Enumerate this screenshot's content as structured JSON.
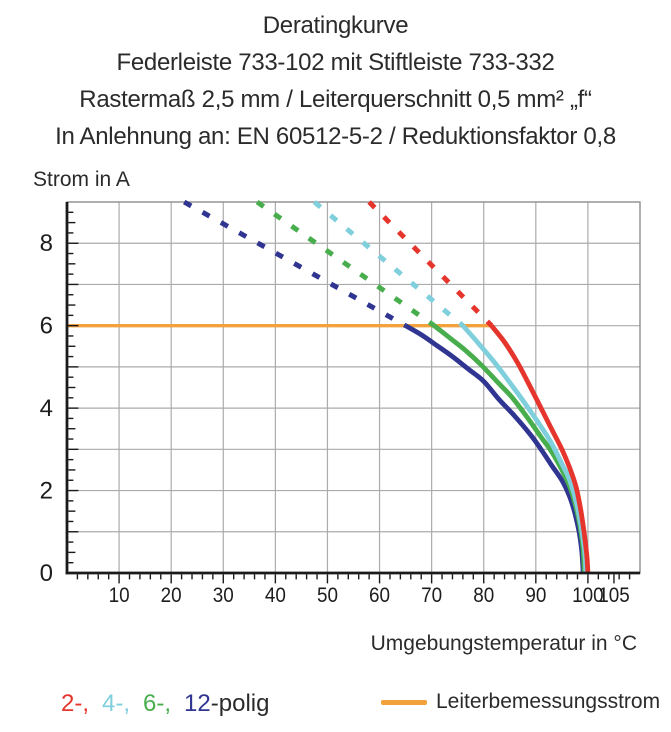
{
  "title": {
    "lines": [
      "Deratingkurve",
      "Federleiste 733-102 mit Stiftleiste 733-332",
      "Rastermaß 2,5 mm / Leiterquerschnitt 0,5 mm² „f“",
      "In Anlehnung an: EN 60512-5-2 / Reduktionsfaktor 0,8"
    ]
  },
  "chart_data": {
    "type": "line",
    "title": "Deratingkurve",
    "xlabel": "Umgebungstemperatur in °C",
    "ylabel": "Strom in A",
    "xlim": [
      0,
      110
    ],
    "ylim": [
      0,
      9
    ],
    "grid": "on",
    "grid_color": "#ababab",
    "frame_color": "#8d8d8d",
    "axis_color": "#1a1a1a",
    "x_tick_labels": [
      10,
      20,
      30,
      40,
      50,
      60,
      70,
      80,
      90,
      100,
      105
    ],
    "y_tick_labels": [
      0,
      2,
      4,
      6,
      8
    ],
    "x_minor_tick_step": 2,
    "y_minor_tick_step": 0.25,
    "reference_line": {
      "label": "Leiterbemessungsstrom",
      "current_a": 6,
      "x_start": 0,
      "x_end": 81.5,
      "color": "#f2a23c"
    },
    "series": [
      {
        "name": "2-polig",
        "color": "#e5352d",
        "dashed_points": [
          [
            58,
            9
          ],
          [
            81.5,
            6
          ]
        ],
        "solid_points": [
          [
            81.5,
            6
          ],
          [
            84,
            5.6
          ],
          [
            86.5,
            5.1
          ],
          [
            89,
            4.5
          ],
          [
            91,
            4.0
          ],
          [
            93,
            3.5
          ],
          [
            95,
            3.0
          ],
          [
            96.5,
            2.55
          ],
          [
            97.7,
            2.1
          ],
          [
            98.6,
            1.55
          ],
          [
            99.3,
            0.95
          ],
          [
            99.8,
            0.4
          ],
          [
            100,
            0
          ]
        ]
      },
      {
        "name": "4-polig",
        "color": "#7fcfdc",
        "dashed_points": [
          [
            47.5,
            9
          ],
          [
            76,
            6
          ]
        ],
        "solid_points": [
          [
            76,
            6
          ],
          [
            79,
            5.57
          ],
          [
            82,
            5.12
          ],
          [
            85,
            4.62
          ],
          [
            88,
            4.1
          ],
          [
            91,
            3.55
          ],
          [
            93,
            3.15
          ],
          [
            95,
            2.65
          ],
          [
            96.5,
            2.25
          ],
          [
            97.8,
            1.7
          ],
          [
            98.8,
            1.05
          ],
          [
            99.4,
            0.5
          ],
          [
            99.6,
            0
          ]
        ]
      },
      {
        "name": "6-polig",
        "color": "#48ae4d",
        "dashed_points": [
          [
            36.5,
            9
          ],
          [
            70.5,
            6
          ]
        ],
        "solid_points": [
          [
            70.5,
            6
          ],
          [
            73.5,
            5.7
          ],
          [
            76.5,
            5.4
          ],
          [
            79.5,
            5.05
          ],
          [
            82.5,
            4.65
          ],
          [
            85.5,
            4.25
          ],
          [
            88.5,
            3.75
          ],
          [
            91,
            3.3
          ],
          [
            93,
            2.95
          ],
          [
            95,
            2.5
          ],
          [
            96.5,
            2.1
          ],
          [
            97.7,
            1.6
          ],
          [
            98.6,
            1.05
          ],
          [
            99.1,
            0.55
          ],
          [
            99.3,
            0
          ]
        ]
      },
      {
        "name": "12-polig",
        "color": "#2f3590",
        "dashed_points": [
          [
            22.5,
            9
          ],
          [
            65,
            6
          ]
        ],
        "solid_points": [
          [
            65,
            6
          ],
          [
            68,
            5.78
          ],
          [
            71,
            5.52
          ],
          [
            74,
            5.25
          ],
          [
            77,
            4.95
          ],
          [
            80,
            4.65
          ],
          [
            83,
            4.2
          ],
          [
            86,
            3.8
          ],
          [
            89,
            3.35
          ],
          [
            91,
            3.0
          ],
          [
            93,
            2.62
          ],
          [
            95,
            2.25
          ],
          [
            96.5,
            1.85
          ],
          [
            97.5,
            1.45
          ],
          [
            98.3,
            1.0
          ],
          [
            98.8,
            0.55
          ],
          [
            99.1,
            0
          ]
        ]
      }
    ]
  },
  "legend": {
    "poles": [
      {
        "label": "2-,",
        "color": "#e5352d"
      },
      {
        "label": "4-,",
        "color": "#7fcfdc"
      },
      {
        "label": "6-,",
        "color": "#48ae4d"
      },
      {
        "label": "12",
        "color": "#2f3590"
      }
    ],
    "suffix": "-polig",
    "reference": {
      "label": "Leiterbemessungsstrom",
      "color": "#f2a23c"
    }
  }
}
